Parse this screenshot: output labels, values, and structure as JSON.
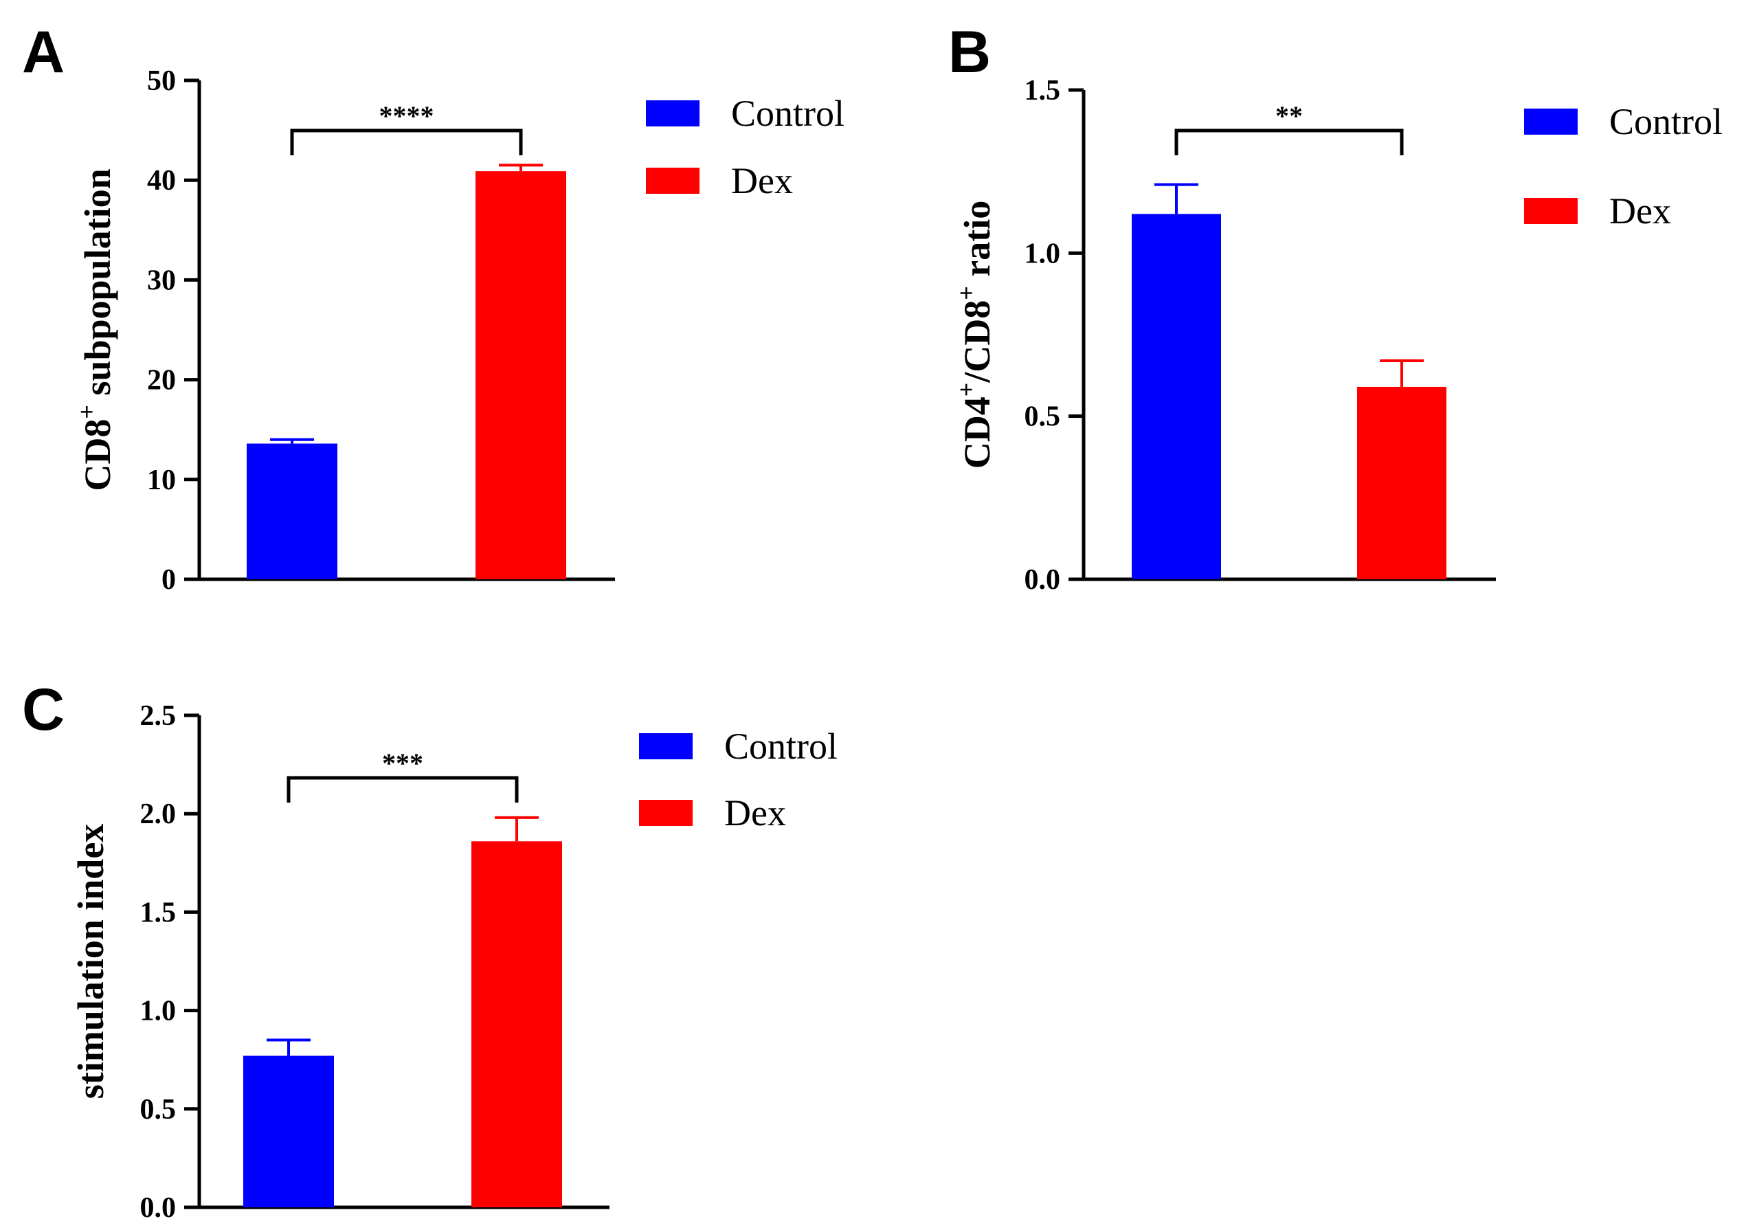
{
  "colors": {
    "control": "#0000ff",
    "dex": "#ff0000",
    "axis": "#000000"
  },
  "chart_data": [
    {
      "panel": "A",
      "type": "bar",
      "categories": [
        "Control",
        "Dex"
      ],
      "values": [
        13.6,
        40.9
      ],
      "errors": [
        0.4,
        0.6
      ],
      "ylabel_main": "CD8",
      "ylabel_sup": "+",
      "ylabel_rest": " subpopulation",
      "ylim": [
        0,
        50
      ],
      "yticks": [
        0,
        10,
        20,
        30,
        40,
        50
      ],
      "ytick_labels": [
        "0",
        "10",
        "20",
        "30",
        "40",
        "50"
      ],
      "significance": "****",
      "legend": [
        {
          "name": "Control",
          "color": "#0000ff"
        },
        {
          "name": "Dex",
          "color": "#ff0000"
        }
      ],
      "legend_position": "top-right",
      "grid": false
    },
    {
      "panel": "B",
      "type": "bar",
      "categories": [
        "Control",
        "Dex"
      ],
      "values": [
        1.12,
        0.59
      ],
      "errors": [
        0.09,
        0.08
      ],
      "ylabel_parts": [
        "CD4",
        "+",
        "/CD8",
        "+",
        " ratio"
      ],
      "ylim": [
        0,
        1.5
      ],
      "yticks": [
        0,
        0.5,
        1.0,
        1.5
      ],
      "ytick_labels": [
        "0.0",
        "0.5",
        "1.0",
        "1.5"
      ],
      "significance": "**",
      "legend": [
        {
          "name": "Control",
          "color": "#0000ff"
        },
        {
          "name": "Dex",
          "color": "#ff0000"
        }
      ],
      "legend_position": "top-right",
      "grid": false
    },
    {
      "panel": "C",
      "type": "bar",
      "categories": [
        "Control",
        "Dex"
      ],
      "values": [
        0.77,
        1.86
      ],
      "errors": [
        0.08,
        0.12
      ],
      "ylabel": "stimulation index",
      "ylim": [
        0,
        2.5
      ],
      "yticks": [
        0,
        0.5,
        1.0,
        1.5,
        2.0,
        2.5
      ],
      "ytick_labels": [
        "0.0",
        "0.5",
        "1.0",
        "1.5",
        "2.0",
        "2.5"
      ],
      "significance": "***",
      "legend": [
        {
          "name": "Control",
          "color": "#0000ff"
        },
        {
          "name": "Dex",
          "color": "#ff0000"
        }
      ],
      "legend_position": "top-right",
      "grid": false
    }
  ]
}
